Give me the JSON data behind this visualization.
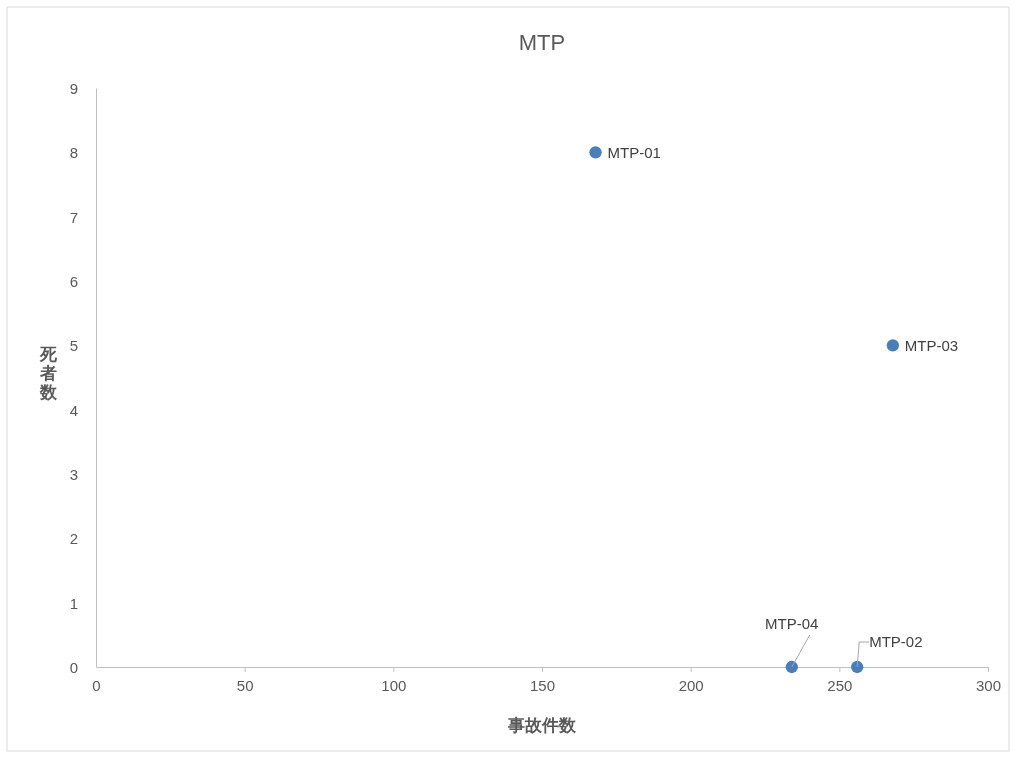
{
  "chart_data": {
    "type": "scatter",
    "title": "MTP",
    "xlabel": "事故件数",
    "ylabel": "死者数",
    "x": [
      168,
      234,
      256,
      268
    ],
    "series": [
      {
        "color": "#4a7ebb",
        "values": [
          8,
          0,
          0,
          5
        ]
      }
    ],
    "xlim": [
      0,
      300
    ],
    "xticks": [
      0,
      50,
      100,
      150,
      200,
      250,
      300
    ],
    "ylim": [
      0,
      9
    ],
    "yticks": [
      0,
      1,
      2,
      3,
      4,
      5,
      6,
      7,
      8,
      9
    ],
    "grid": false,
    "marker": "circle",
    "annotations": [
      {
        "text": "MTP-01",
        "x": 168,
        "y": 8
      },
      {
        "text": "MTP-02",
        "x": 256,
        "y": 0
      },
      {
        "text": "MTP-03",
        "x": 268,
        "y": 5
      },
      {
        "text": "MTP-04",
        "x": 234,
        "y": 0
      }
    ]
  }
}
